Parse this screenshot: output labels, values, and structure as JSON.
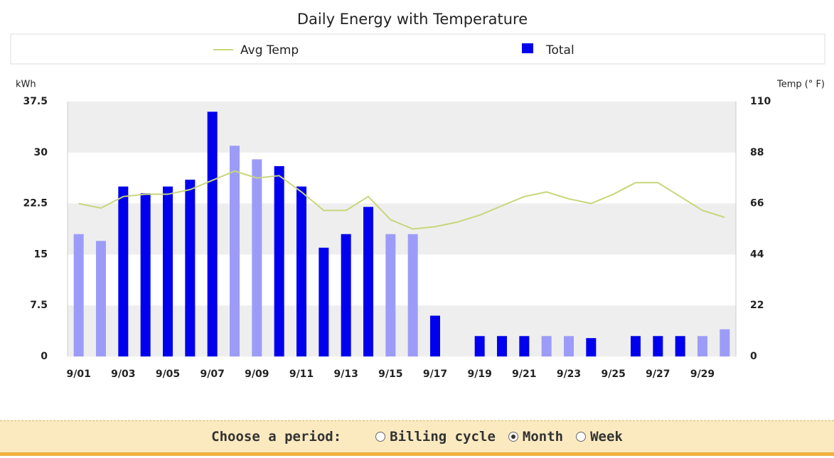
{
  "chart_data": {
    "type": "bar",
    "title": "Daily Energy with Temperature",
    "y_label": "kWh",
    "y2_label": "Temp (° F)",
    "categories": [
      "9/01",
      null,
      "9/03",
      null,
      "9/05",
      null,
      "9/07",
      null,
      "9/09",
      null,
      "9/11",
      null,
      "9/13",
      null,
      "9/15",
      null,
      "9/17",
      null,
      "9/19",
      null,
      "9/21",
      null,
      "9/23",
      null,
      "9/25",
      null,
      "9/27",
      null,
      "9/29",
      null
    ],
    "series": [
      {
        "name": "Avg Temp",
        "type": "line",
        "axis": "y2",
        "color": "#c8d67a",
        "values": [
          66,
          64,
          69,
          70,
          70,
          72,
          76,
          80,
          77,
          78,
          71,
          63,
          63,
          69,
          59,
          55,
          56,
          58,
          61,
          65,
          69,
          71,
          68,
          66,
          70,
          75,
          75,
          69,
          63,
          60
        ]
      },
      {
        "name": "Total",
        "type": "bar",
        "color": "#0000ee",
        "values": [
          18,
          17,
          25,
          24,
          25,
          26,
          36,
          31,
          29,
          28,
          25,
          16,
          18,
          22,
          18,
          18,
          6,
          null,
          3,
          3,
          3,
          3,
          3,
          2.7,
          null,
          3,
          3,
          3,
          3,
          4
        ],
        "colors": [
          "#9c9cf8",
          "#9c9cf8",
          "#0000ee",
          "#0000ee",
          "#0000ee",
          "#0000ee",
          "#0000ee",
          "#9c9cf8",
          "#9c9cf8",
          "#0000ee",
          "#0000ee",
          "#0000ee",
          "#0000ee",
          "#0000ee",
          "#9c9cf8",
          "#9c9cf8",
          "#0000ee",
          "#0000ee",
          "#0000ee",
          "#0000ee",
          "#0000ee",
          "#9c9cf8",
          "#9c9cf8",
          "#0000ee",
          "#0000ee",
          "#0000ee",
          "#0000ee",
          "#0000ee",
          "#9c9cf8",
          "#9c9cf8"
        ]
      }
    ],
    "ylim": [
      0,
      37.5
    ],
    "yticks": [
      0,
      7.5,
      15,
      22.5,
      30,
      37.5
    ],
    "y2lim": [
      0,
      110
    ],
    "y2ticks": [
      0,
      22,
      44,
      66,
      88,
      110
    ],
    "grid": true,
    "legend": "top"
  },
  "controls": {
    "label": "Choose a period:",
    "options": [
      "Billing cycle",
      "Month",
      "Week"
    ],
    "selected": "Month"
  }
}
